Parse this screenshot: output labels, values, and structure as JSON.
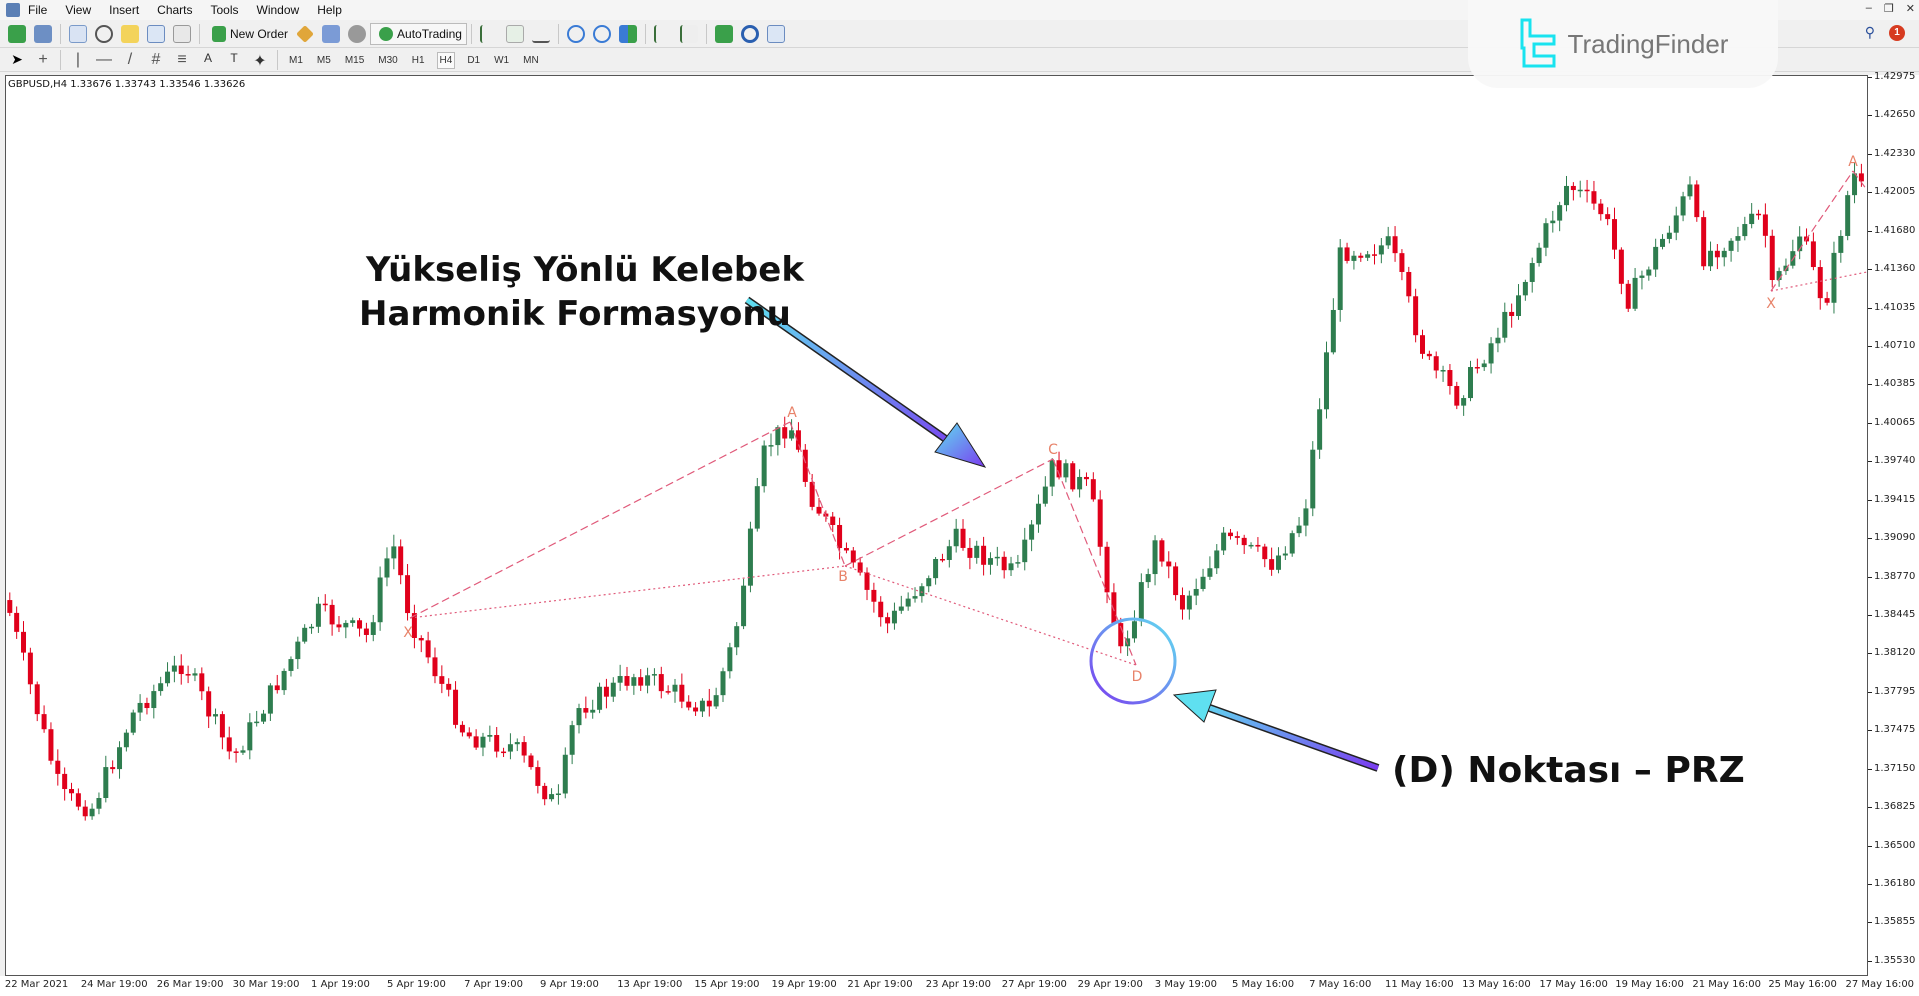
{
  "menu": [
    "File",
    "View",
    "Insert",
    "Charts",
    "Tools",
    "Window",
    "Help"
  ],
  "toolbar": {
    "new_order": "New Order",
    "autotrading": "AutoTrading"
  },
  "timeframes": [
    "M1",
    "M5",
    "M15",
    "M30",
    "H1",
    "H4",
    "D1",
    "W1",
    "MN"
  ],
  "active_timeframe": "H4",
  "chart": {
    "symbol_line": "GBPUSD,H4  1.33676 1.33743 1.33546 1.33626",
    "price_labels": [
      "1.42975",
      "1.42650",
      "1.42330",
      "1.42005",
      "1.41680",
      "1.41360",
      "1.41035",
      "1.40710",
      "1.40385",
      "1.40065",
      "1.39740",
      "1.39415",
      "1.39090",
      "1.38770",
      "1.38445",
      "1.38120",
      "1.37795",
      "1.37475",
      "1.37150",
      "1.36825",
      "1.36500",
      "1.36180",
      "1.35855",
      "1.35530"
    ],
    "time_labels": [
      "22 Mar 2021",
      "24 Mar 19:00",
      "26 Mar 19:00",
      "30 Mar 19:00",
      "1 Apr 19:00",
      "5 Apr 19:00",
      "7 Apr 19:00",
      "9 Apr 19:00",
      "13 Apr 19:00",
      "15 Apr 19:00",
      "19 Apr 19:00",
      "21 Apr 19:00",
      "23 Apr 19:00",
      "27 Apr 19:00",
      "29 Apr 19:00",
      "3 May 19:00",
      "5 May 16:00",
      "7 May 16:00",
      "11 May 16:00",
      "13 May 16:00",
      "17 May 16:00",
      "19 May 16:00",
      "21 May 16:00",
      "25 May 16:00",
      "27 May 16:00"
    ],
    "pattern_points": [
      "X",
      "A",
      "B",
      "C",
      "D"
    ],
    "second_pattern_points": [
      "X",
      "A"
    ],
    "colors": {
      "bull": "#2e7d4f",
      "bear": "#e0001b",
      "pattern": "#e8836a",
      "pattern_line": "#e05a7a"
    }
  },
  "annotations": {
    "title_line1": "Yükseliş Yönlü Kelebek",
    "title_line2": "Harmonik Formasyonu",
    "prz_label": "(D) Noktası – PRZ"
  },
  "logo": {
    "text": "TradingFinder"
  },
  "notifications": {
    "count": "1"
  }
}
